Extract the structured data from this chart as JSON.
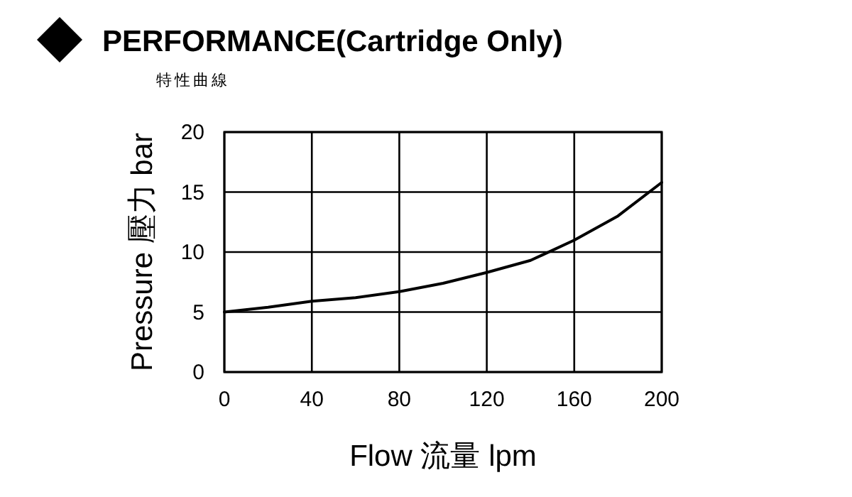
{
  "chart_data": {
    "type": "line",
    "title": "PERFORMANCE(Cartridge Only)",
    "subtitle": "特性曲線",
    "xlabel": "Flow 流量 lpm",
    "ylabel": "Pressure 壓力 bar",
    "x": [
      0,
      20,
      40,
      60,
      80,
      100,
      120,
      140,
      160,
      180,
      200
    ],
    "series": [
      {
        "color": "#000000",
        "values": [
          5.0,
          5.4,
          5.9,
          6.2,
          6.7,
          7.4,
          8.3,
          9.3,
          11.0,
          13.0,
          15.8
        ]
      }
    ],
    "xlim": [
      0,
      200
    ],
    "xticks": [
      0,
      40,
      80,
      120,
      160,
      200
    ],
    "ylim": [
      0,
      20
    ],
    "yticks": [
      0,
      5,
      10,
      15,
      20
    ],
    "grid": true,
    "marker": "none",
    "line_style": "solid"
  }
}
